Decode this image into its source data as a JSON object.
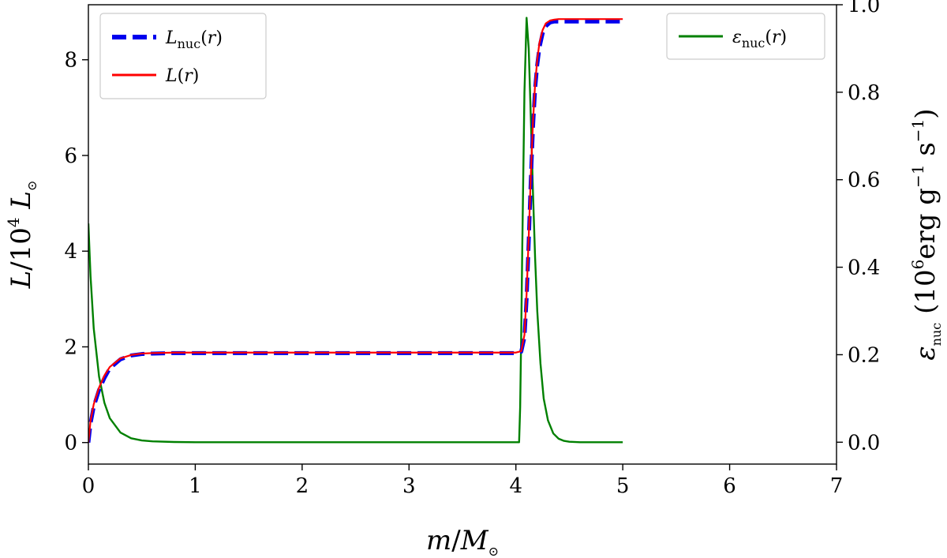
{
  "chart_data": {
    "type": "line",
    "xlabel": "m/M⊙",
    "ylabel_left": "L/10⁴ L⊙",
    "ylabel_right": "ε_nuc (10⁶ erg g⁻¹ s⁻¹)",
    "xlim": [
      0,
      7
    ],
    "ylim_left": [
      -0.45,
      9.15
    ],
    "ylim_right": [
      -0.05,
      1.0
    ],
    "x_ticks": [
      0,
      1,
      2,
      3,
      4,
      5,
      6,
      7
    ],
    "y_ticks_left": [
      0,
      2,
      4,
      6,
      8
    ],
    "y_ticks_right": [
      0.0,
      0.2,
      0.4,
      0.6,
      0.8,
      1.0
    ],
    "grid": false,
    "legends": [
      {
        "placement": "upper-left",
        "entries": [
          "L_nuc(r)",
          "L(r)"
        ]
      },
      {
        "placement": "upper-right",
        "entries": [
          "ε_nuc(r)"
        ]
      }
    ],
    "series": [
      {
        "name": "L_nuc(r)",
        "axis": "left",
        "color": "#0000ee",
        "style": "dashed",
        "x": [
          0.0,
          0.02,
          0.05,
          0.1,
          0.15,
          0.2,
          0.3,
          0.4,
          0.5,
          0.6,
          0.8,
          1.0,
          2.0,
          3.0,
          4.0,
          4.05,
          4.08,
          4.1,
          4.12,
          4.14,
          4.16,
          4.18,
          4.2,
          4.22,
          4.25,
          4.28,
          4.32,
          4.36,
          4.4,
          4.5,
          5.0
        ],
        "y": [
          0.0,
          0.4,
          0.75,
          1.1,
          1.35,
          1.55,
          1.74,
          1.82,
          1.85,
          1.86,
          1.87,
          1.87,
          1.87,
          1.87,
          1.87,
          1.9,
          2.2,
          3.0,
          4.2,
          5.5,
          6.6,
          7.4,
          7.9,
          8.25,
          8.55,
          8.7,
          8.78,
          8.8,
          8.8,
          8.8,
          8.8
        ]
      },
      {
        "name": "L(r)",
        "axis": "left",
        "color": "#ff0000",
        "style": "solid",
        "x": [
          0.0,
          0.02,
          0.05,
          0.1,
          0.15,
          0.2,
          0.3,
          0.4,
          0.5,
          0.6,
          0.8,
          1.0,
          2.0,
          3.0,
          4.0,
          4.05,
          4.08,
          4.1,
          4.12,
          4.14,
          4.16,
          4.18,
          4.2,
          4.22,
          4.25,
          4.28,
          4.32,
          4.36,
          4.4,
          4.5,
          5.0
        ],
        "y": [
          0.0,
          0.45,
          0.8,
          1.15,
          1.4,
          1.58,
          1.76,
          1.83,
          1.86,
          1.87,
          1.88,
          1.88,
          1.88,
          1.88,
          1.88,
          1.91,
          2.25,
          3.1,
          4.3,
          5.6,
          6.7,
          7.5,
          8.0,
          8.35,
          8.62,
          8.76,
          8.82,
          8.84,
          8.85,
          8.85,
          8.85
        ]
      },
      {
        "name": "ε_nuc(r)",
        "axis": "right",
        "color": "#008000",
        "style": "solid",
        "x": [
          0.0,
          0.02,
          0.05,
          0.1,
          0.15,
          0.2,
          0.3,
          0.4,
          0.5,
          0.6,
          0.8,
          1.0,
          2.0,
          3.0,
          4.03,
          4.04,
          4.05,
          4.06,
          4.08,
          4.1,
          4.12,
          4.14,
          4.16,
          4.18,
          4.2,
          4.23,
          4.26,
          4.3,
          4.35,
          4.4,
          4.45,
          4.5,
          4.6,
          5.0
        ],
        "y": [
          0.5,
          0.38,
          0.26,
          0.15,
          0.09,
          0.055,
          0.022,
          0.009,
          0.004,
          0.002,
          0.0005,
          0.0,
          0.0,
          0.0,
          0.0,
          0.08,
          0.25,
          0.45,
          0.8,
          0.97,
          0.9,
          0.74,
          0.57,
          0.42,
          0.3,
          0.18,
          0.1,
          0.05,
          0.02,
          0.008,
          0.003,
          0.001,
          0.0,
          0.0
        ]
      }
    ]
  }
}
